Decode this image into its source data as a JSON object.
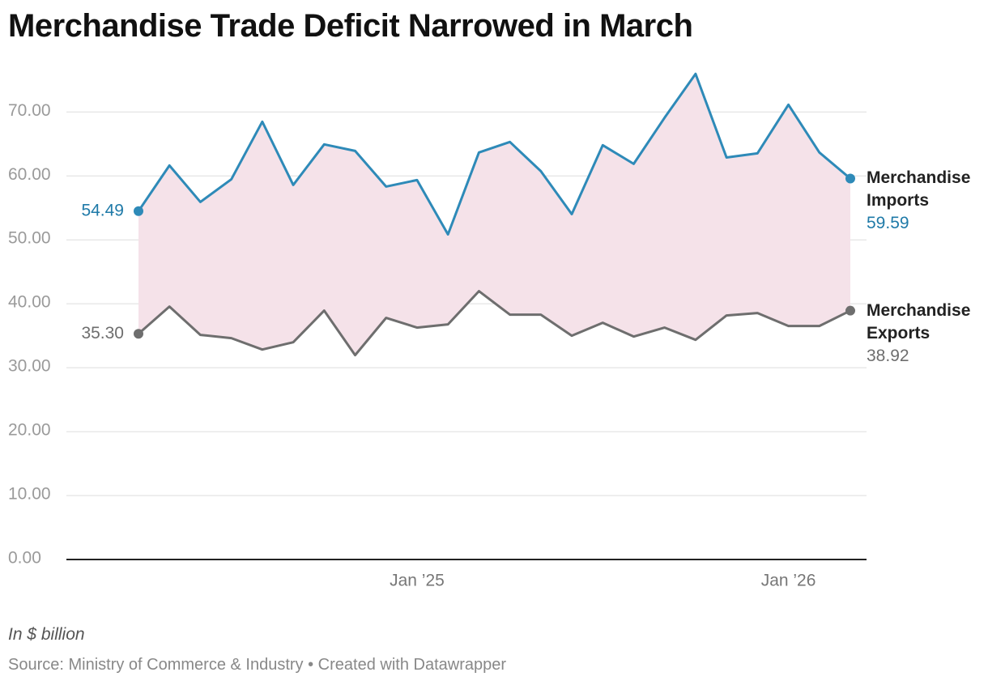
{
  "chart_data": {
    "type": "line",
    "title": "Merchandise Trade Deficit Narrowed in March",
    "note": "In $ billion",
    "source": "Source: Ministry of Commerce & Industry • Created with Datawrapper",
    "categories": [
      null,
      null,
      null,
      null,
      null,
      null,
      null,
      null,
      null,
      "Jan ’25",
      null,
      null,
      null,
      null,
      null,
      null,
      null,
      null,
      null,
      null,
      null,
      "Jan ’26",
      null,
      null
    ],
    "series": [
      {
        "name": "Merchandise Imports",
        "color": "#2e8ab8",
        "values": [
          54.49,
          61.63,
          55.92,
          59.47,
          68.48,
          58.58,
          64.93,
          63.91,
          58.33,
          59.35,
          50.85,
          63.66,
          65.31,
          60.74,
          54.02,
          64.8,
          61.88,
          69.11,
          75.96,
          62.88,
          63.53,
          71.14,
          63.66,
          59.59
        ],
        "value_labels": [
          "54.49",
          null,
          null,
          null,
          null,
          null,
          null,
          null,
          null,
          null,
          null,
          null,
          null,
          null,
          null,
          null,
          null,
          null,
          null,
          null,
          null,
          null,
          null,
          "59.59"
        ]
      },
      {
        "name": "Merchandise Exports",
        "color": "#6e6e6e",
        "values": [
          35.3,
          39.56,
          35.13,
          34.62,
          32.84,
          33.98,
          38.93,
          31.96,
          37.79,
          36.27,
          36.77,
          41.97,
          38.3,
          38.3,
          35.0,
          37.03,
          34.87,
          36.27,
          34.36,
          38.17,
          38.55,
          36.52,
          36.52,
          38.92
        ],
        "value_labels": [
          "35.30",
          null,
          null,
          null,
          null,
          null,
          null,
          null,
          null,
          null,
          null,
          null,
          null,
          null,
          null,
          null,
          null,
          null,
          null,
          null,
          null,
          null,
          null,
          "38.92"
        ]
      }
    ],
    "area_color": "#f5e2e9",
    "ylim": [
      0,
      77
    ],
    "yticks": [
      {
        "value": 0,
        "label": "0.00"
      },
      {
        "value": 10,
        "label": "10.00"
      },
      {
        "value": 20,
        "label": "20.00"
      },
      {
        "value": 30,
        "label": "30.00"
      },
      {
        "value": 40,
        "label": "40.00"
      },
      {
        "value": 50,
        "label": "50.00"
      },
      {
        "value": 60,
        "label": "60.00"
      },
      {
        "value": 70,
        "label": "70.00"
      }
    ],
    "grid": true
  }
}
